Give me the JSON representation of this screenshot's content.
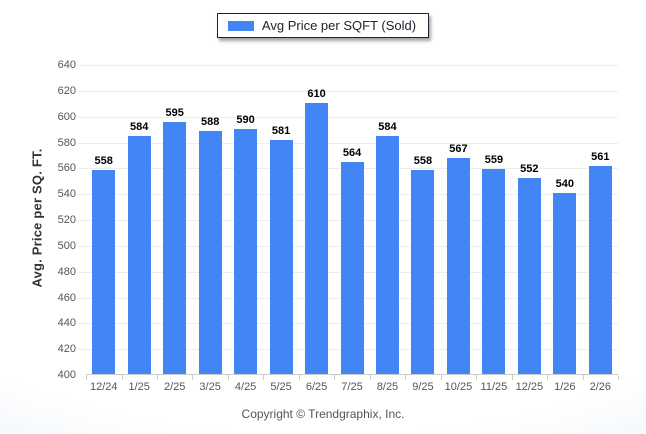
{
  "legend": {
    "label": "Avg Price per SQFT (Sold)"
  },
  "footer": {
    "copyright": "Copyright © Trendgraphix, Inc."
  },
  "colors": {
    "bar": "#4285f4",
    "grid": "#ededed",
    "axis": "#cccccc",
    "tick_text": "#555555",
    "value_text": "#000000",
    "legend_border": "#222233",
    "background_edge": "#dbe7f4"
  },
  "chart_data": {
    "type": "bar",
    "title": "",
    "xlabel": "",
    "ylabel": "Avg. Price per SQ. FT.",
    "categories": [
      "12/24",
      "1/25",
      "2/25",
      "3/25",
      "4/25",
      "5/25",
      "6/25",
      "7/25",
      "8/25",
      "9/25",
      "10/25",
      "11/25",
      "12/25",
      "1/26",
      "2/26"
    ],
    "series": [
      {
        "name": "Avg Price per SQFT (Sold)",
        "values": [
          558,
          584,
          595,
          588,
          590,
          581,
          610,
          564,
          584,
          558,
          567,
          559,
          552,
          540,
          561
        ]
      }
    ],
    "ylim": [
      400,
      640
    ],
    "ytick_step": 20,
    "yticks": [
      400,
      420,
      440,
      460,
      480,
      500,
      520,
      540,
      560,
      580,
      600,
      620,
      640
    ],
    "grid": true,
    "legend_position": "top-center",
    "value_labels": true
  }
}
